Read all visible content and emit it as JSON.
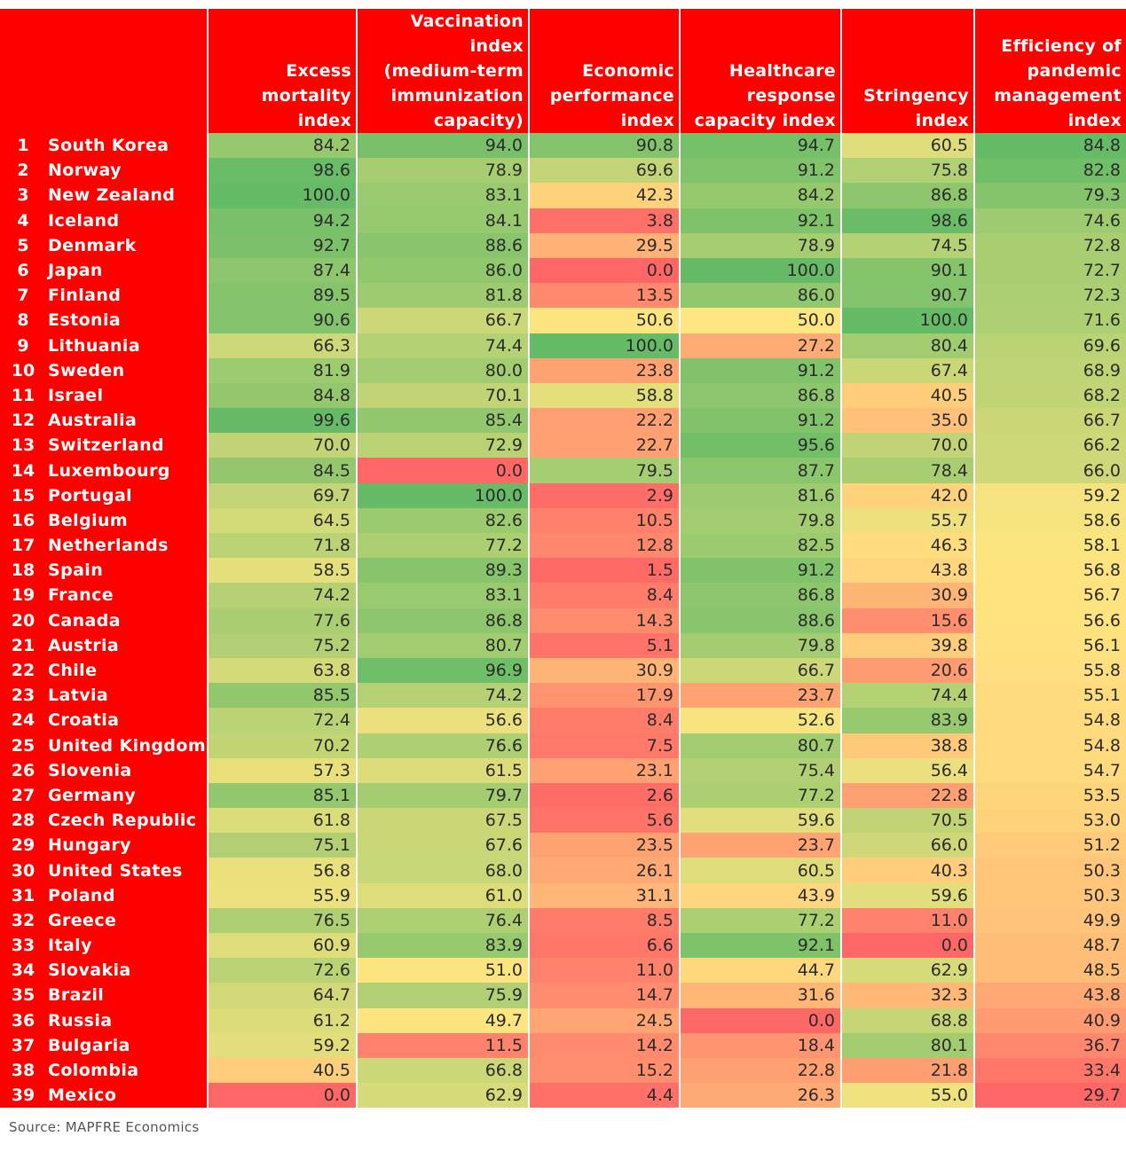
{
  "chart_data": {
    "type": "heatmap",
    "columns": [
      "Excess mortality index",
      "Vaccination index (medium-term immunization capacity)",
      "Economic performance index",
      "Healthcare response capacity index",
      "Stringency index",
      "Efficiency of pandemic management index"
    ],
    "column_lines": [
      [
        "Excess",
        "mortality index"
      ],
      [
        "Vaccination index",
        "(medium-term",
        "immunization",
        "capacity)"
      ],
      [
        "Economic",
        "performance",
        "index"
      ],
      [
        "Healthcare",
        "response",
        "capacity index"
      ],
      [
        "Stringency",
        "index"
      ],
      [
        "Efficiency of",
        "pandemic",
        "management",
        "index"
      ]
    ],
    "rows": [
      {
        "rank": "1",
        "country": "South Korea",
        "values": [
          84.2,
          94.0,
          90.8,
          94.7,
          60.5,
          84.8
        ]
      },
      {
        "rank": "2",
        "country": "Norway",
        "values": [
          98.6,
          78.9,
          69.6,
          91.2,
          75.8,
          82.8
        ]
      },
      {
        "rank": "3",
        "country": "New Zealand",
        "values": [
          100.0,
          83.1,
          42.3,
          84.2,
          86.8,
          79.3
        ]
      },
      {
        "rank": "4",
        "country": "Iceland",
        "values": [
          94.2,
          84.1,
          3.8,
          92.1,
          98.6,
          74.6
        ]
      },
      {
        "rank": "5",
        "country": "Denmark",
        "values": [
          92.7,
          88.6,
          29.5,
          78.9,
          74.5,
          72.8
        ]
      },
      {
        "rank": "6",
        "country": "Japan",
        "values": [
          87.4,
          86.0,
          0.0,
          100.0,
          90.1,
          72.7
        ]
      },
      {
        "rank": "7",
        "country": "Finland",
        "values": [
          89.5,
          81.8,
          13.5,
          86.0,
          90.7,
          72.3
        ]
      },
      {
        "rank": "8",
        "country": "Estonia",
        "values": [
          90.6,
          66.7,
          50.6,
          50.0,
          100.0,
          71.6
        ]
      },
      {
        "rank": "9",
        "country": "Lithuania",
        "values": [
          66.3,
          74.4,
          100.0,
          27.2,
          80.4,
          69.6
        ]
      },
      {
        "rank": "10",
        "country": "Sweden",
        "values": [
          81.9,
          80.0,
          23.8,
          91.2,
          67.4,
          68.9
        ]
      },
      {
        "rank": "11",
        "country": "Israel",
        "values": [
          84.8,
          70.1,
          58.8,
          86.8,
          40.5,
          68.2
        ]
      },
      {
        "rank": "12",
        "country": "Australia",
        "values": [
          99.6,
          85.4,
          22.2,
          91.2,
          35.0,
          66.7
        ]
      },
      {
        "rank": "13",
        "country": "Switzerland",
        "values": [
          70.0,
          72.9,
          22.7,
          95.6,
          70.0,
          66.2
        ]
      },
      {
        "rank": "14",
        "country": "Luxembourg",
        "values": [
          84.5,
          0.0,
          79.5,
          87.7,
          78.4,
          66.0
        ]
      },
      {
        "rank": "15",
        "country": "Portugal",
        "values": [
          69.7,
          100.0,
          2.9,
          81.6,
          42.0,
          59.2
        ]
      },
      {
        "rank": "16",
        "country": "Belgium",
        "values": [
          64.5,
          82.6,
          10.5,
          79.8,
          55.7,
          58.6
        ]
      },
      {
        "rank": "17",
        "country": "Netherlands",
        "values": [
          71.8,
          77.2,
          12.8,
          82.5,
          46.3,
          58.1
        ]
      },
      {
        "rank": "18",
        "country": "Spain",
        "values": [
          58.5,
          89.3,
          1.5,
          91.2,
          43.8,
          56.8
        ]
      },
      {
        "rank": "19",
        "country": "France",
        "values": [
          74.2,
          83.1,
          8.4,
          86.8,
          30.9,
          56.7
        ]
      },
      {
        "rank": "20",
        "country": "Canada",
        "values": [
          77.6,
          86.8,
          14.3,
          88.6,
          15.6,
          56.6
        ]
      },
      {
        "rank": "21",
        "country": "Austria",
        "values": [
          75.2,
          80.7,
          5.1,
          79.8,
          39.8,
          56.1
        ]
      },
      {
        "rank": "22",
        "country": "Chile",
        "values": [
          63.8,
          96.9,
          30.9,
          66.7,
          20.6,
          55.8
        ]
      },
      {
        "rank": "23",
        "country": "Latvia",
        "values": [
          85.5,
          74.2,
          17.9,
          23.7,
          74.4,
          55.1
        ]
      },
      {
        "rank": "24",
        "country": "Croatia",
        "values": [
          72.4,
          56.6,
          8.4,
          52.6,
          83.9,
          54.8
        ]
      },
      {
        "rank": "25",
        "country": "United Kingdom",
        "values": [
          70.2,
          76.6,
          7.5,
          80.7,
          38.8,
          54.8
        ]
      },
      {
        "rank": "26",
        "country": "Slovenia",
        "values": [
          57.3,
          61.5,
          23.1,
          75.4,
          56.4,
          54.7
        ]
      },
      {
        "rank": "27",
        "country": "Germany",
        "values": [
          85.1,
          79.7,
          2.6,
          77.2,
          22.8,
          53.5
        ]
      },
      {
        "rank": "28",
        "country": "Czech Republic",
        "values": [
          61.8,
          67.5,
          5.6,
          59.6,
          70.5,
          53.0
        ]
      },
      {
        "rank": "29",
        "country": "Hungary",
        "values": [
          75.1,
          67.6,
          23.5,
          23.7,
          66.0,
          51.2
        ]
      },
      {
        "rank": "30",
        "country": "United States",
        "values": [
          56.8,
          68.0,
          26.1,
          60.5,
          40.3,
          50.3
        ]
      },
      {
        "rank": "31",
        "country": "Poland",
        "values": [
          55.9,
          61.0,
          31.1,
          43.9,
          59.6,
          50.3
        ]
      },
      {
        "rank": "32",
        "country": "Greece",
        "values": [
          76.5,
          76.4,
          8.5,
          77.2,
          11.0,
          49.9
        ]
      },
      {
        "rank": "33",
        "country": "Italy",
        "values": [
          60.9,
          83.9,
          6.6,
          92.1,
          0.0,
          48.7
        ]
      },
      {
        "rank": "34",
        "country": "Slovakia",
        "values": [
          72.6,
          51.0,
          11.0,
          44.7,
          62.9,
          48.5
        ]
      },
      {
        "rank": "35",
        "country": "Brazil",
        "values": [
          64.7,
          75.9,
          14.7,
          31.6,
          32.3,
          43.8
        ]
      },
      {
        "rank": "36",
        "country": "Russia",
        "values": [
          61.2,
          49.7,
          24.5,
          0.0,
          68.8,
          40.9
        ]
      },
      {
        "rank": "37",
        "country": "Bulgaria",
        "values": [
          59.2,
          11.5,
          14.2,
          18.4,
          80.1,
          36.7
        ]
      },
      {
        "rank": "38",
        "country": "Colombia",
        "values": [
          40.5,
          66.8,
          15.2,
          22.8,
          21.8,
          33.4
        ]
      },
      {
        "rank": "39",
        "country": "Mexico",
        "values": [
          0.0,
          62.9,
          4.4,
          26.3,
          55.0,
          29.7
        ]
      }
    ],
    "color_scale": {
      "low": "#ff6666",
      "mid": "#ffe680",
      "high": "#66bb66"
    },
    "header_color": "#ff0000"
  },
  "source": "Source: MAPFRE Economics"
}
